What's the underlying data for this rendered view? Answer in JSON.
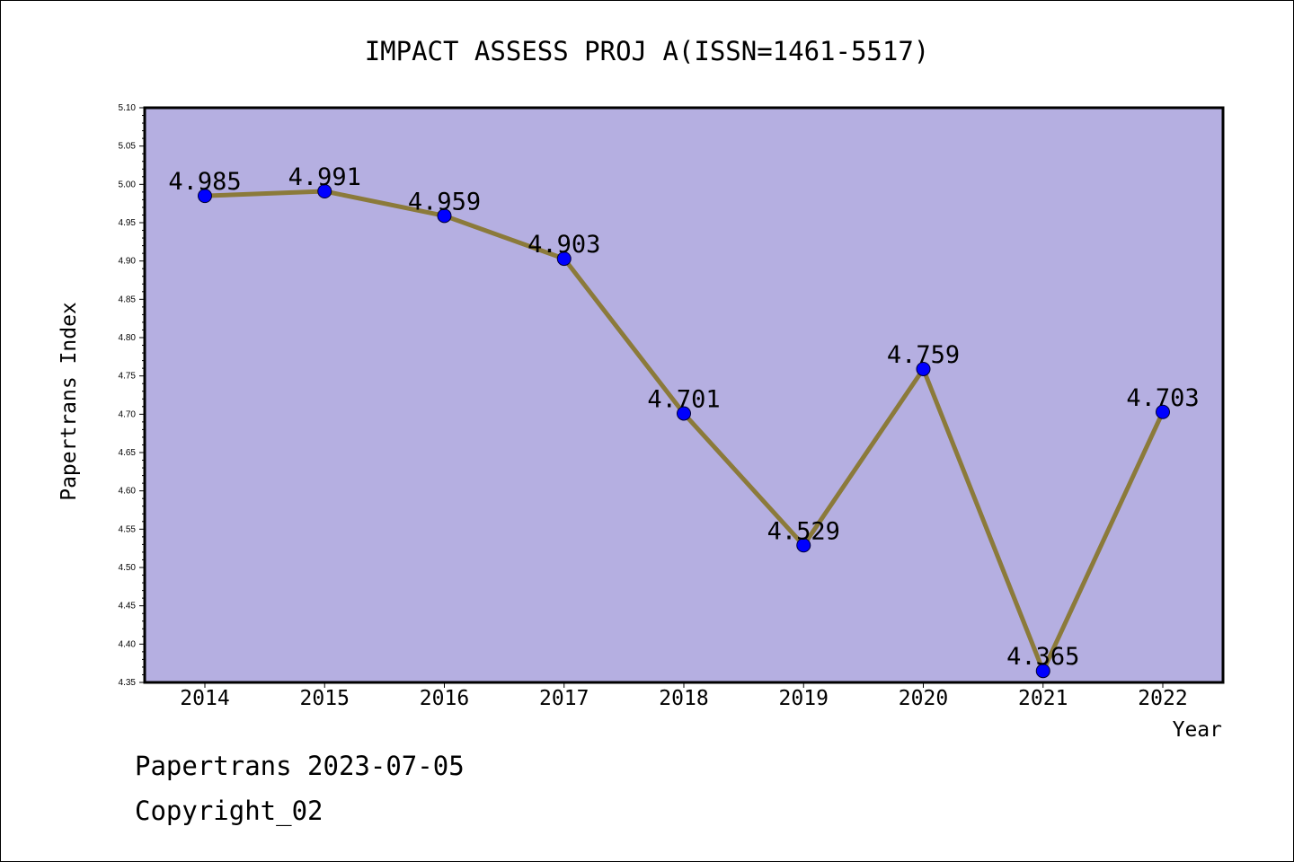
{
  "footer": {
    "line1": "Papertrans 2023-07-05",
    "line2": "Copyright_02"
  },
  "chart_data": {
    "type": "line",
    "title": "IMPACT ASSESS PROJ A(ISSN=1461-5517)",
    "xlabel": "Year",
    "ylabel": "Papertrans Index",
    "categories": [
      "2014",
      "2015",
      "2016",
      "2017",
      "2018",
      "2019",
      "2020",
      "2021",
      "2022"
    ],
    "series": [
      {
        "values": [
          4.985,
          4.991,
          4.959,
          4.903,
          4.701,
          4.529,
          4.759,
          4.365,
          4.703
        ]
      }
    ],
    "data_labels": [
      "4.985",
      "4.991",
      "4.959",
      "4.903",
      "4.701",
      "4.529",
      "4.759",
      "4.365",
      "4.703"
    ],
    "ylim": [
      4.35,
      5.1
    ],
    "y_ticks": [
      "4.35",
      "4.40",
      "4.45",
      "4.50",
      "4.55",
      "4.60",
      "4.65",
      "4.70",
      "4.75",
      "4.80",
      "4.85",
      "4.90",
      "4.95",
      "5.00",
      "5.05",
      "5.10"
    ],
    "grid": false,
    "legend": "none",
    "colors": {
      "plot_background": "#b5afe1",
      "line": "#8b7a3a",
      "marker": "#0000ff",
      "axis": "#000000"
    }
  }
}
